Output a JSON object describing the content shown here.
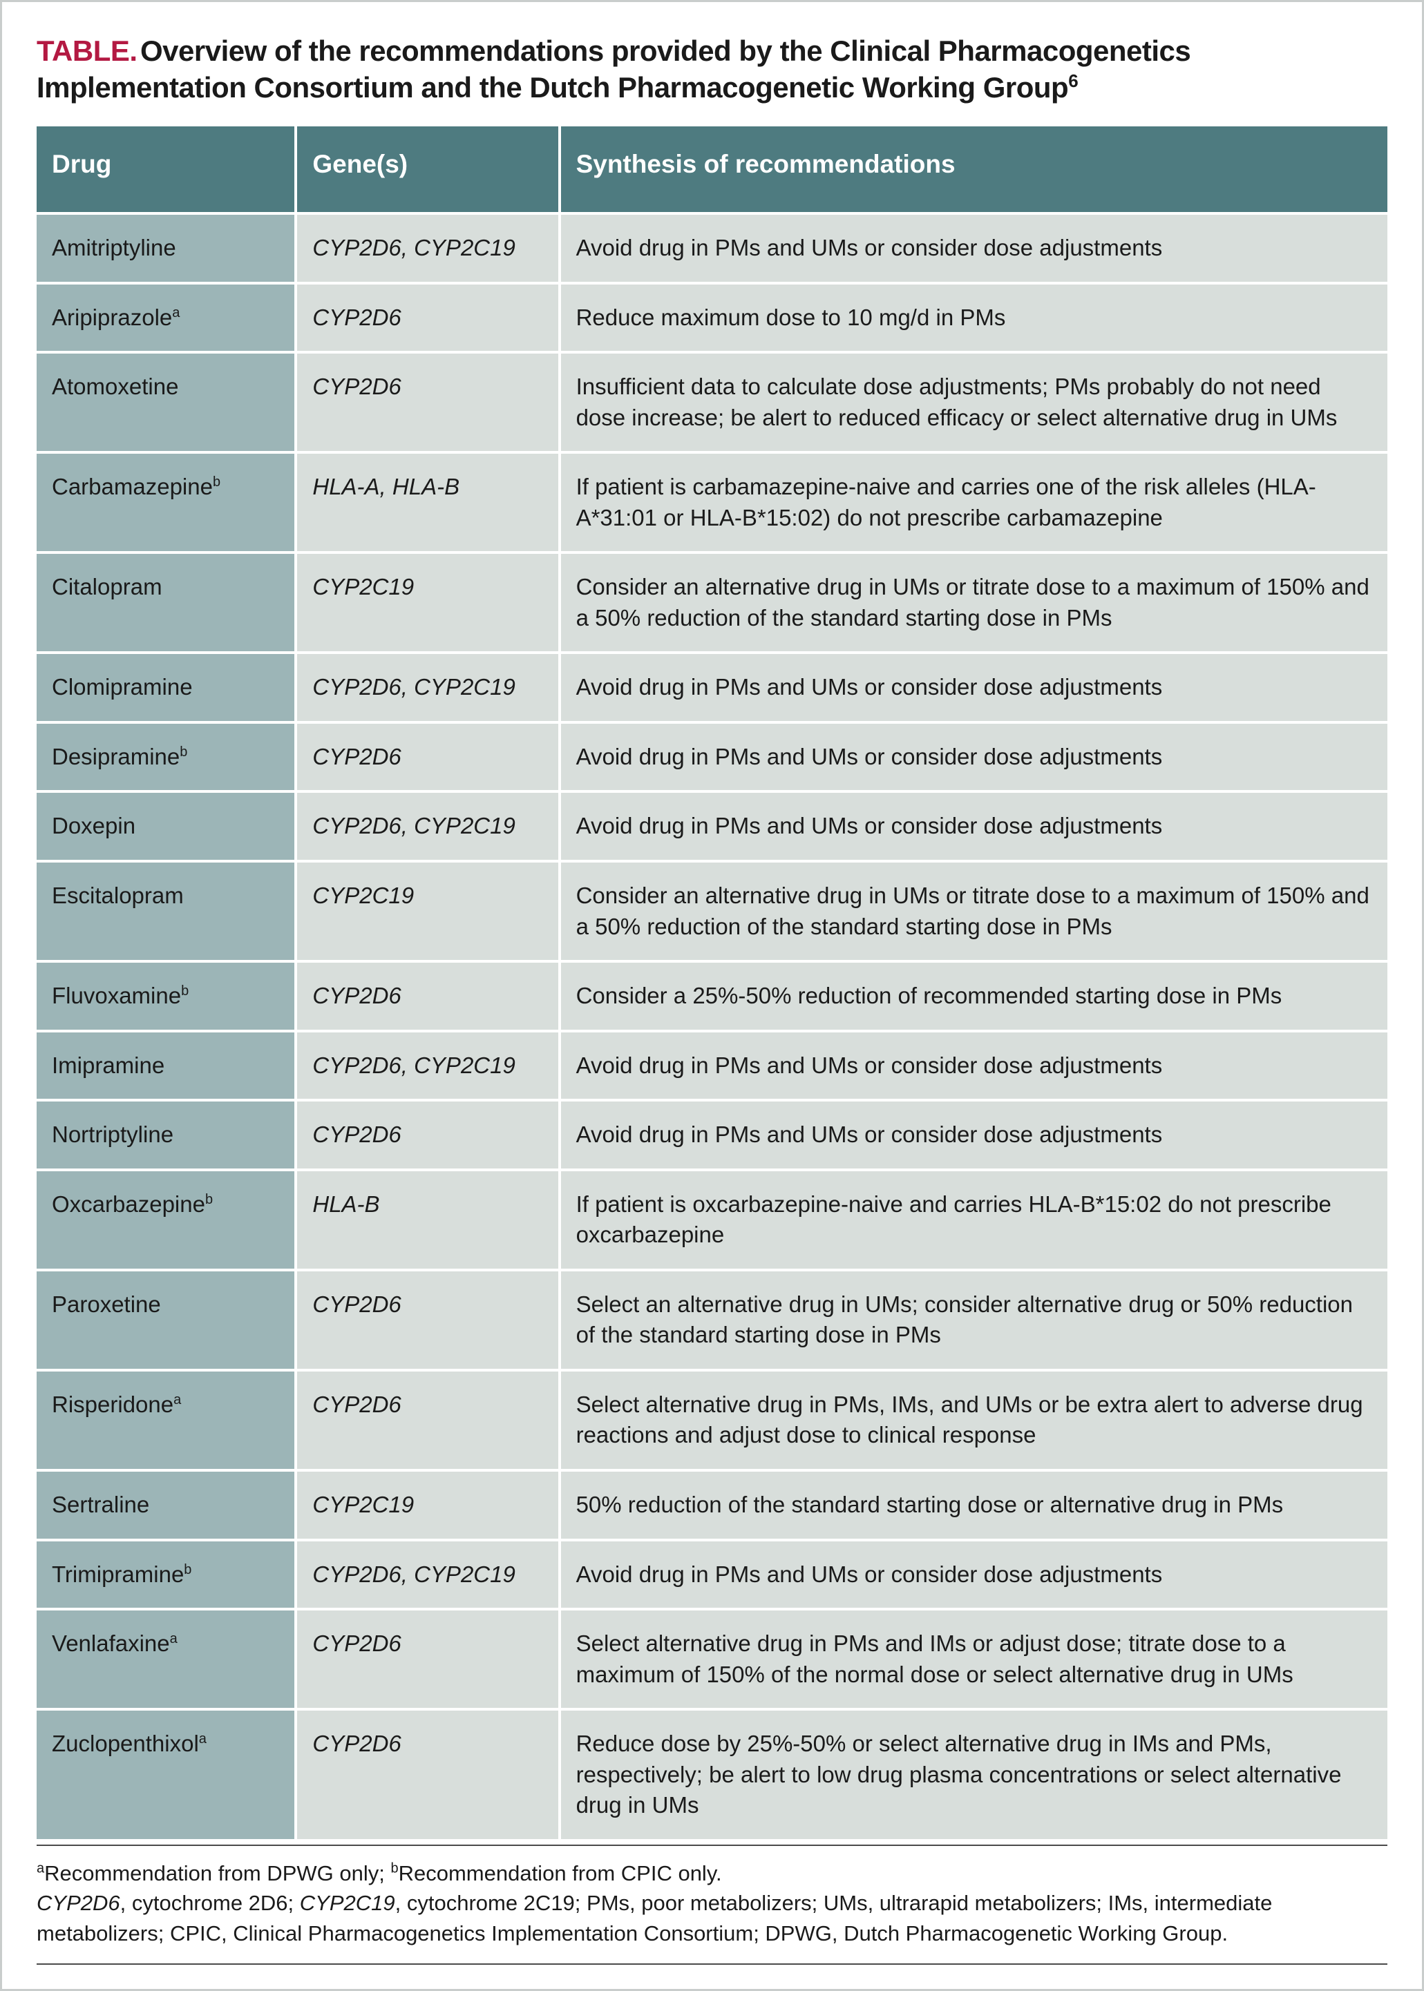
{
  "title": {
    "label": "TABLE.",
    "text_line1": "Overview of the recommendations provided by the Clinical Pharmacogenetics",
    "text_line2": "Implementation Consortium and the Dutch Pharmacogenetic Working Group",
    "sup": "6"
  },
  "columns": {
    "drug": "Drug",
    "gene": "Gene(s)",
    "rec": "Synthesis of recommendations"
  },
  "rows": [
    {
      "drug": "Amitriptyline",
      "note": "",
      "gene": "CYP2D6, CYP2C19",
      "rec": "Avoid drug in PMs and UMs or consider dose adjustments"
    },
    {
      "drug": "Aripiprazole",
      "note": "a",
      "gene": "CYP2D6",
      "rec": "Reduce maximum dose to 10 mg/d in PMs"
    },
    {
      "drug": "Atomoxetine",
      "note": "",
      "gene": "CYP2D6",
      "rec": "Insufficient data to calculate dose adjustments; PMs probably do not need dose increase; be alert to reduced efficacy or select alternative drug in UMs"
    },
    {
      "drug": "Carbamazepine",
      "note": "b",
      "gene": "HLA-A, HLA-B",
      "rec": "If patient is carbamazepine-naive and carries one of the risk alleles (HLA-A*31:01 or HLA-B*15:02) do not prescribe carbamazepine"
    },
    {
      "drug": "Citalopram",
      "note": "",
      "gene": "CYP2C19",
      "rec": "Consider an alternative drug in UMs or titrate dose to a maximum of 150% and a 50% reduction of the standard starting dose in PMs"
    },
    {
      "drug": "Clomipramine",
      "note": "",
      "gene": "CYP2D6, CYP2C19",
      "rec": "Avoid drug in PMs and UMs or consider dose adjustments"
    },
    {
      "drug": "Desipramine",
      "note": "b",
      "gene": "CYP2D6",
      "rec": "Avoid drug in PMs and UMs or consider dose adjustments"
    },
    {
      "drug": "Doxepin",
      "note": "",
      "gene": "CYP2D6, CYP2C19",
      "rec": "Avoid drug in PMs and UMs or consider dose adjustments"
    },
    {
      "drug": "Escitalopram",
      "note": "",
      "gene": "CYP2C19",
      "rec": "Consider an alternative drug in UMs or titrate dose to a maximum of 150% and a 50% reduction of the standard starting dose in PMs"
    },
    {
      "drug": "Fluvoxamine",
      "note": "b",
      "gene": "CYP2D6",
      "rec": "Consider a 25%-50% reduction of recommended starting dose in PMs"
    },
    {
      "drug": "Imipramine",
      "note": "",
      "gene": "CYP2D6, CYP2C19",
      "rec": "Avoid drug in PMs and UMs or consider dose adjustments"
    },
    {
      "drug": "Nortriptyline",
      "note": "",
      "gene": "CYP2D6",
      "rec": "Avoid drug in PMs and UMs or consider dose adjustments"
    },
    {
      "drug": "Oxcarbazepine",
      "note": "b",
      "gene": "HLA-B",
      "rec": "If patient is oxcarbazepine-naive and carries HLA-B*15:02 do not prescribe oxcarbazepine"
    },
    {
      "drug": "Paroxetine",
      "note": "",
      "gene": "CYP2D6",
      "rec": "Select an alternative drug in UMs; consider alternative drug or 50% reduction of the standard starting dose in PMs"
    },
    {
      "drug": "Risperidone",
      "note": "a",
      "gene": "CYP2D6",
      "rec": "Select alternative drug in PMs, IMs, and UMs or be extra alert to adverse drug reactions and adjust dose to clinical response"
    },
    {
      "drug": "Sertraline",
      "note": "",
      "gene": "CYP2C19",
      "rec": "50% reduction of the standard starting dose or alternative drug in PMs"
    },
    {
      "drug": "Trimipramine",
      "note": "b",
      "gene": "CYP2D6, CYP2C19",
      "rec": "Avoid drug in PMs and UMs or consider dose adjustments"
    },
    {
      "drug": "Venlafaxine",
      "note": "a",
      "gene": "CYP2D6",
      "rec": "Select alternative drug in PMs and IMs or adjust dose; titrate dose to a maximum of 150% of the normal dose or select alternative drug in UMs"
    },
    {
      "drug": "Zuclopenthixol",
      "note": "a",
      "gene": "CYP2D6",
      "rec": "Reduce dose by 25%-50% or select alternative drug in IMs and PMs, respectively; be alert to low drug plasma concentrations or select alternative drug in UMs"
    }
  ],
  "footnotes": {
    "a": "Recommendation from DPWG only;",
    "b": "Recommendation from CPIC only.",
    "abbr_cyp2d6": "CYP2D6",
    "abbr_cyp2d6_def": ", cytochrome 2D6; ",
    "abbr_cyp2c19": "CYP2C19",
    "abbr_cyp2c19_def": ", cytochrome 2C19; PMs, poor metabolizers; UMs, ultrarapid metabolizers; IMs, intermediate metabolizers; CPIC, Clinical Pharmacogenetics Implementation Consortium; DPWG, Dutch Pharmacogenetic Working Group."
  },
  "colors": {
    "accent_red": "#b31942",
    "header_bg": "#4e7b80",
    "drug_col_bg": "#9cb5b7",
    "cell_bg": "#d8dedb",
    "border": "#c9cdcc",
    "text": "#1a1a1a",
    "white": "#ffffff"
  },
  "typography": {
    "title_fontsize": 42,
    "header_fontsize": 37,
    "body_fontsize": 33,
    "footnote_fontsize": 31,
    "sup_fontsize": 20
  },
  "layout": {
    "container_width": 2061,
    "col_widths_pct": [
      19.2,
      19.5,
      61.3
    ],
    "cell_padding_v": 26,
    "cell_padding_h": 22,
    "row_gap": 4
  }
}
